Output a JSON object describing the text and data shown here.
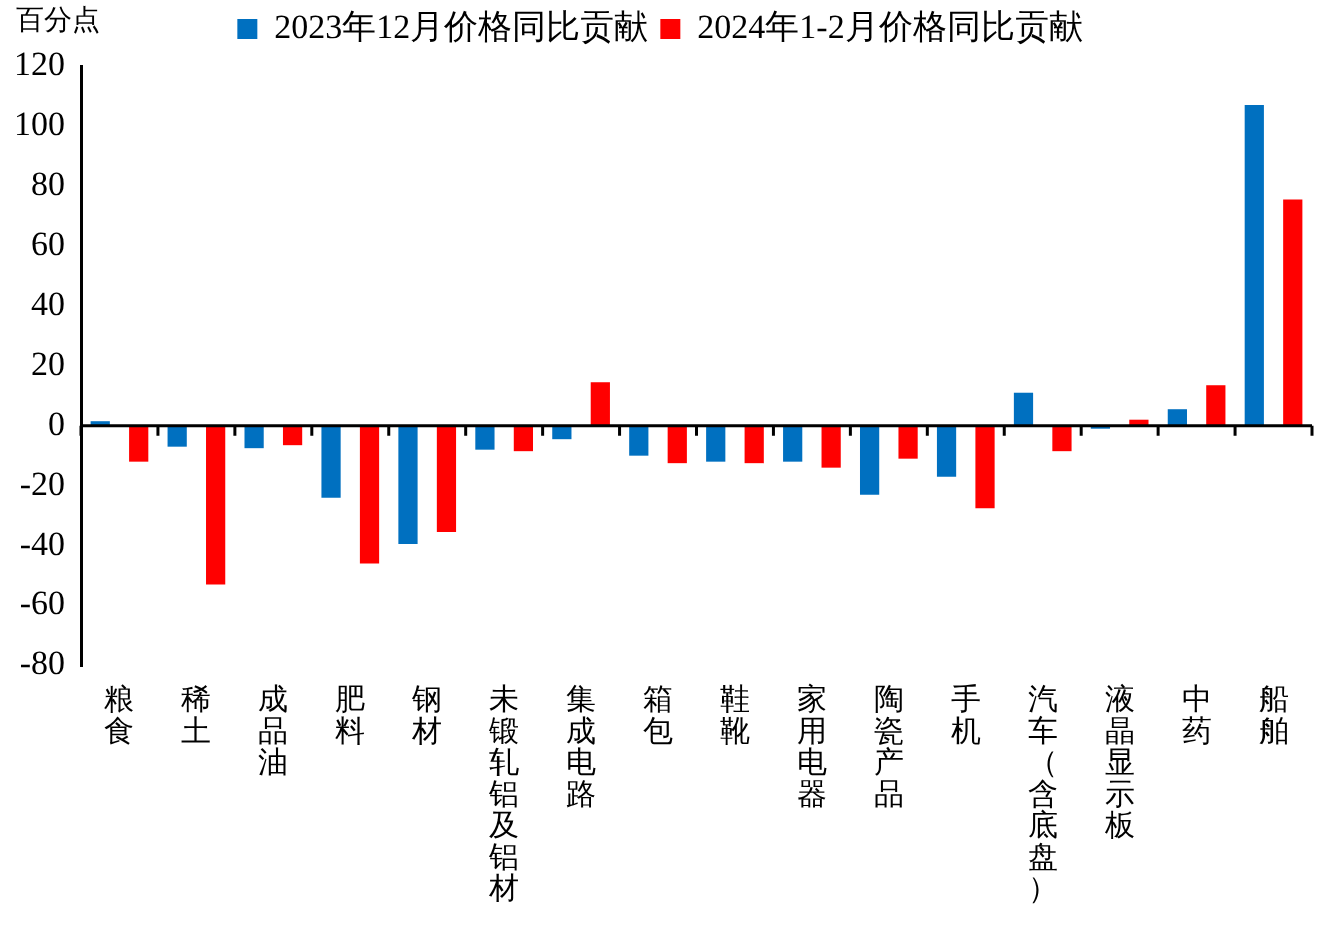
{
  "chart_data": {
    "type": "bar",
    "ylabel": "百分点",
    "categories": [
      "粮食",
      "稀土",
      "成品油",
      "肥料",
      "钢材",
      "未锻轧铝及铝材",
      "集成电路",
      "箱包",
      "鞋靴",
      "家用电器",
      "陶瓷产品",
      "手机",
      "汽车（含底盘）",
      "液晶显示板",
      "中药",
      "船舶"
    ],
    "series": [
      {
        "name": "2023年12月价格同比贡献",
        "color": "#0070c0",
        "values": [
          1.5,
          -7,
          -7.5,
          -24,
          -39.5,
          -8,
          -4.5,
          -10,
          -12,
          -12,
          -23,
          -17,
          11,
          -1,
          5.5,
          107
        ]
      },
      {
        "name": "2024年1-2月价格同比贡献",
        "color": "#ff0000",
        "values": [
          -12,
          -53,
          -6.5,
          -46,
          -35.5,
          -8.5,
          14.5,
          -12.5,
          -12.5,
          -14,
          -11,
          -27.5,
          -8.5,
          2,
          13.5,
          75.5
        ]
      }
    ],
    "ylim": [
      -80,
      120
    ],
    "yticks": [
      -80,
      -60,
      -40,
      -20,
      0,
      20,
      40,
      60,
      80,
      100,
      120
    ],
    "legend": "top"
  }
}
